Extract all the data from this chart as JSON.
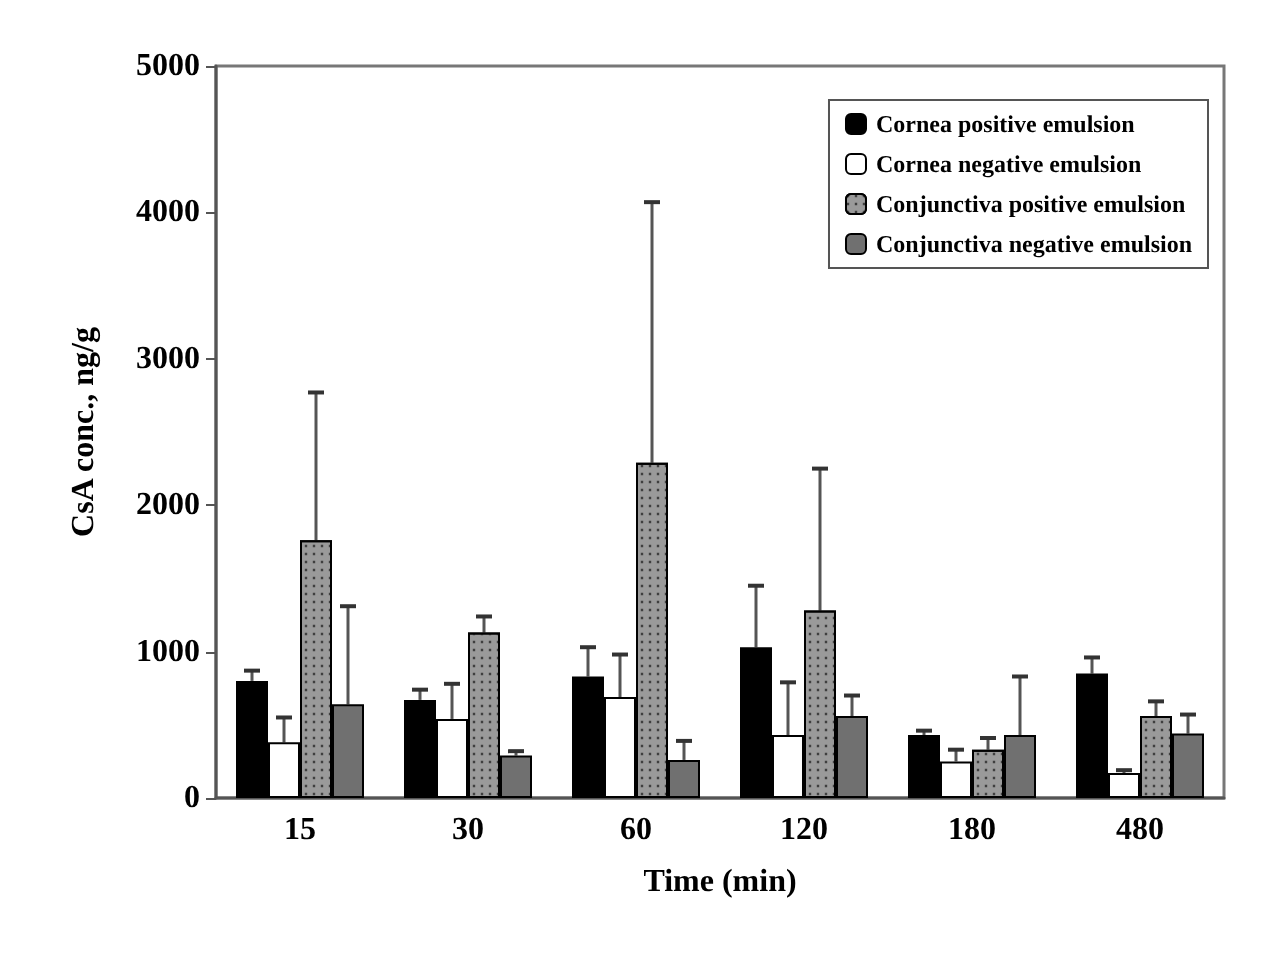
{
  "chart_data": {
    "type": "bar",
    "xlabel": "Time (min)",
    "ylabel": "CsA conc., ng/g",
    "categories": [
      "15",
      "30",
      "60",
      "120",
      "180",
      "480"
    ],
    "series": [
      {
        "name": "Cornea positive emulsion",
        "color": "#000000",
        "values": [
          800,
          670,
          830,
          1030,
          430,
          850
        ],
        "errors": [
          [
            800,
            870
          ],
          [
            670,
            740
          ],
          [
            830,
            1030
          ],
          [
            1030,
            1450
          ],
          [
            430,
            460
          ],
          [
            850,
            960
          ]
        ]
      },
      {
        "name": "Cornea negative emulsion",
        "color": "#ffffff",
        "values": [
          380,
          540,
          690,
          430,
          250,
          170
        ],
        "errors": [
          [
            380,
            550
          ],
          [
            540,
            780
          ],
          [
            690,
            980
          ],
          [
            430,
            790
          ],
          [
            250,
            330
          ],
          [
            170,
            190
          ]
        ]
      },
      {
        "name": "Conjunctiva positive emulsion",
        "color": "#9a9a9a",
        "values": [
          1760,
          1130,
          2290,
          1280,
          330,
          560
        ],
        "errors": [
          [
            1760,
            2770
          ],
          [
            1130,
            1240
          ],
          [
            2290,
            4070
          ],
          [
            1280,
            2250
          ],
          [
            330,
            410
          ],
          [
            560,
            660
          ]
        ]
      },
      {
        "name": "Conjunctiva negative emulsion",
        "color": "#707070",
        "values": [
          640,
          290,
          260,
          560,
          430,
          440
        ],
        "errors": [
          [
            640,
            1310
          ],
          [
            290,
            320
          ],
          [
            260,
            390
          ],
          [
            560,
            700
          ],
          [
            430,
            830
          ],
          [
            440,
            570
          ]
        ]
      }
    ],
    "ylim": [
      0,
      5000
    ],
    "yticks": [
      0,
      1000,
      2000,
      3000,
      4000,
      5000
    ],
    "grid": false,
    "legend": "top right"
  }
}
